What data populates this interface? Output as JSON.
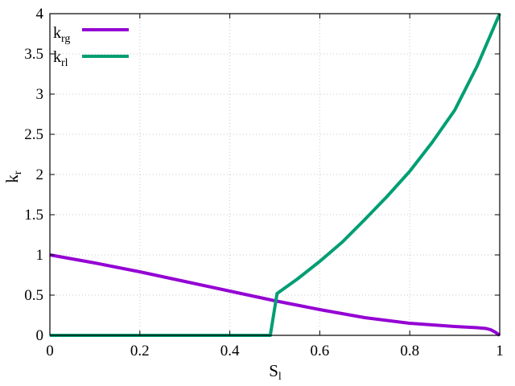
{
  "chart_data": {
    "type": "line",
    "xlabel": {
      "base": "S",
      "sub": "l"
    },
    "ylabel": {
      "base": "k",
      "sub": "r"
    },
    "xlim": [
      0,
      1
    ],
    "ylim": [
      0,
      4
    ],
    "xticks": [
      {
        "value": 0,
        "label": "0"
      },
      {
        "value": 0.2,
        "label": "0.2"
      },
      {
        "value": 0.4,
        "label": "0.4"
      },
      {
        "value": 0.6,
        "label": "0.6"
      },
      {
        "value": 0.8,
        "label": "0.8"
      },
      {
        "value": 1,
        "label": "1"
      }
    ],
    "yticks": [
      {
        "value": 0,
        "label": "0"
      },
      {
        "value": 0.5,
        "label": "0.5"
      },
      {
        "value": 1,
        "label": "1"
      },
      {
        "value": 1.5,
        "label": "1.5"
      },
      {
        "value": 2,
        "label": "2"
      },
      {
        "value": 2.5,
        "label": "2.5"
      },
      {
        "value": 3,
        "label": "3"
      },
      {
        "value": 3.5,
        "label": "3.5"
      },
      {
        "value": 4,
        "label": "4"
      }
    ],
    "grid": true,
    "legend_position": "top-left",
    "series": [
      {
        "name": {
          "base": "k",
          "sub": "rg"
        },
        "color": "#9400d3",
        "x": [
          0,
          0.1,
          0.2,
          0.3,
          0.4,
          0.5,
          0.6,
          0.7,
          0.8,
          0.9,
          0.95,
          0.97,
          0.98,
          0.99,
          1.0
        ],
        "y": [
          1.0,
          0.9,
          0.79,
          0.67,
          0.55,
          0.43,
          0.32,
          0.22,
          0.15,
          0.11,
          0.095,
          0.085,
          0.07,
          0.04,
          0.0
        ]
      },
      {
        "name": {
          "base": "k",
          "sub": "rl"
        },
        "color": "#009e73",
        "x": [
          0,
          0.49,
          0.505,
          0.55,
          0.6,
          0.65,
          0.7,
          0.75,
          0.8,
          0.85,
          0.9,
          0.95,
          1.0
        ],
        "y": [
          0,
          0,
          0.52,
          0.7,
          0.92,
          1.16,
          1.44,
          1.73,
          2.04,
          2.4,
          2.8,
          3.35,
          4.0
        ]
      }
    ]
  }
}
